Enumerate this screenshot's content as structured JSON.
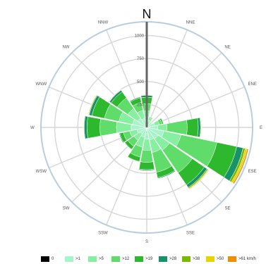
{
  "chart_data": {
    "type": "windrose",
    "title": "",
    "north_label": "N",
    "directions": [
      "N",
      "NNE",
      "NE",
      "ENE",
      "E",
      "ESE",
      "SE",
      "SSE",
      "S",
      "SSW",
      "SW",
      "WSW",
      "W",
      "WNW",
      "NW",
      "NNW"
    ],
    "radial_ticks": [
      250,
      500,
      750,
      1000
    ],
    "radial_max": 1150,
    "grid": true,
    "legend_position": "bottom",
    "value_mode": "cumulative",
    "classes": [
      {
        "label": "0",
        "color": "#000000"
      },
      {
        "label": ">1",
        "color": "#a6f5c9"
      },
      {
        "label": ">5",
        "color": "#86f0a0"
      },
      {
        "label": ">12",
        "color": "#5fdc6a"
      },
      {
        "label": ">19",
        "color": "#2db82e"
      },
      {
        "label": ">28",
        "color": "#17936a"
      },
      {
        "label": ">38",
        "color": "#7ab800"
      },
      {
        "label": ">50",
        "color": "#e6d300"
      },
      {
        "label": ">61 km/h",
        "color": "#ee8f00"
      }
    ],
    "series": [
      {
        "direction": "N",
        "values": [
          0,
          110,
          180,
          260,
          330,
          350,
          355,
          358,
          362
        ]
      },
      {
        "direction": "NNE",
        "values": [
          0,
          80,
          105,
          115,
          120,
          120,
          120,
          120,
          120
        ]
      },
      {
        "direction": "NE",
        "values": [
          0,
          55,
          65,
          70,
          72,
          72,
          72,
          72,
          72
        ]
      },
      {
        "direction": "ENE",
        "values": [
          0,
          90,
          140,
          170,
          185,
          188,
          188,
          188,
          188
        ]
      },
      {
        "direction": "E",
        "values": [
          0,
          120,
          220,
          440,
          560,
          585,
          592,
          596,
          598
        ]
      },
      {
        "direction": "ESE",
        "values": [
          0,
          190,
          380,
          780,
          1000,
          1070,
          1095,
          1115,
          1130
        ]
      },
      {
        "direction": "SE",
        "values": [
          0,
          150,
          300,
          600,
          760,
          795,
          808,
          815,
          820
        ]
      },
      {
        "direction": "SSE",
        "values": [
          0,
          140,
          280,
          500,
          560,
          570,
          574,
          576,
          578
        ]
      },
      {
        "direction": "S",
        "values": [
          0,
          130,
          250,
          380,
          460,
          470,
          475,
          477,
          480
        ]
      },
      {
        "direction": "SSW",
        "values": [
          0,
          110,
          220,
          330,
          380,
          385,
          387,
          388,
          390
        ]
      },
      {
        "direction": "SW",
        "values": [
          0,
          90,
          170,
          250,
          290,
          295,
          296,
          297,
          298
        ]
      },
      {
        "direction": "WSW",
        "values": [
          0,
          110,
          190,
          260,
          300,
          308,
          310,
          311,
          312
        ]
      },
      {
        "direction": "W",
        "values": [
          0,
          170,
          330,
          510,
          650,
          680,
          686,
          690,
          692
        ]
      },
      {
        "direction": "WNW",
        "values": [
          0,
          160,
          310,
          470,
          610,
          640,
          648,
          653,
          656
        ]
      },
      {
        "direction": "NW",
        "values": [
          0,
          120,
          250,
          390,
          470,
          492,
          497,
          500,
          502
        ]
      },
      {
        "direction": "NNW",
        "values": [
          0,
          100,
          190,
          280,
          330,
          340,
          343,
          345,
          347
        ]
      }
    ]
  }
}
